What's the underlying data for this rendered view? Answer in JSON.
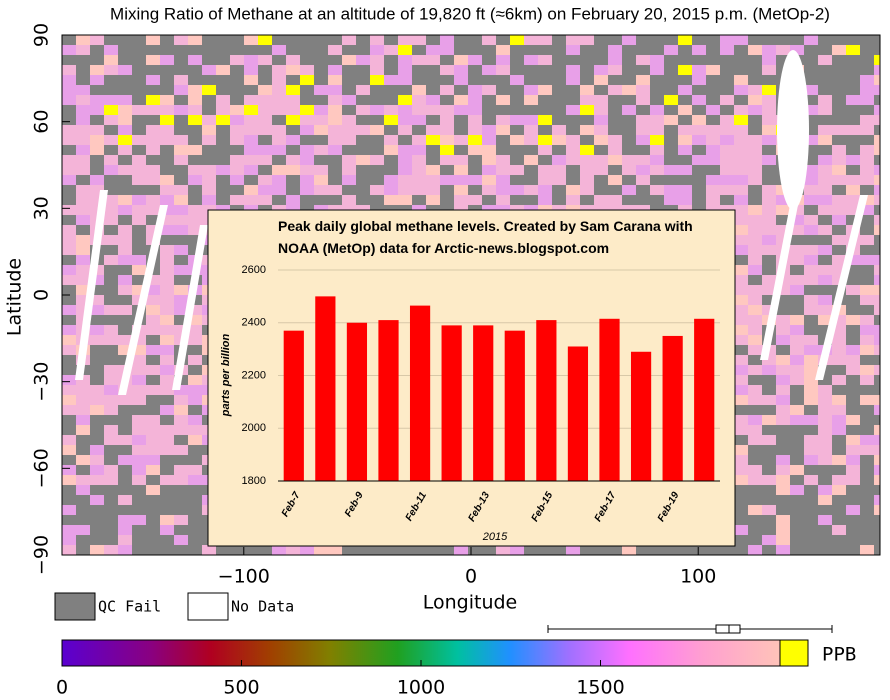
{
  "chart_data": [
    {
      "type": "map",
      "title": "Mixing Ratio of Methane at an altitude of 19,820 ft (≈6km) on February 20, 2015 p.m. (MetOp-2)",
      "xlabel": "Longitude",
      "ylabel": "Latitude",
      "xlim": [
        -180,
        180
      ],
      "ylim": [
        -90,
        90
      ],
      "xticks": [
        {
          "value": -100,
          "label": "−100"
        },
        0,
        100
      ],
      "yticks": [
        90,
        60,
        30,
        0,
        {
          "value": -30,
          "label": "−30"
        },
        {
          "value": -60,
          "label": "−60"
        },
        {
          "value": -90,
          "label": "−90"
        }
      ],
      "legend": [
        {
          "name": "QC Fail",
          "color": "#808080"
        },
        {
          "name": "No Data",
          "color": "#ffffff"
        }
      ],
      "colorbar": {
        "label": "PPB",
        "lim": [
          0,
          2000
        ],
        "ticks": [
          0,
          500,
          1000,
          1500
        ]
      }
    },
    {
      "type": "bar",
      "title": "Peak daily global methane levels. Created by Sam Carana with NOAA (MetOp) data for Arctic-news.blogspot.com",
      "ylabel": "parts per billion",
      "xlabel": "2015",
      "categories": [
        "Feb-7",
        null,
        "Feb-9",
        null,
        "Feb-11",
        null,
        "Feb-13",
        null,
        "Feb-15",
        null,
        "Feb-17",
        null,
        "Feb-19",
        null
      ],
      "values": [
        2370,
        2500,
        2400,
        2410,
        2465,
        2390,
        2390,
        2370,
        2410,
        2310,
        2415,
        2290,
        2350,
        2415
      ],
      "color": "#ff0000",
      "ylim": [
        1800,
        2600
      ],
      "yticks": [
        1800,
        2000,
        2200,
        2400,
        2600
      ],
      "grid": true
    }
  ]
}
